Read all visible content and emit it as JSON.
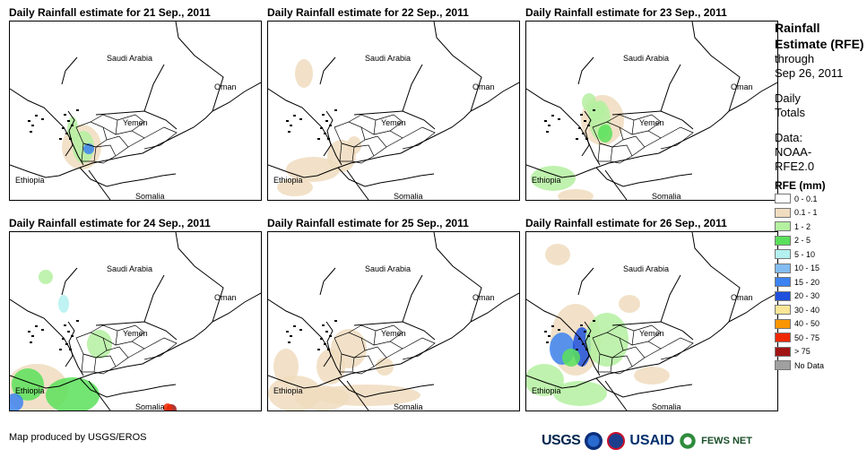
{
  "panels": [
    {
      "title": "Daily Rainfall estimate for 21 Sep., 2011"
    },
    {
      "title": "Daily Rainfall estimate for 22 Sep., 2011"
    },
    {
      "title": "Daily Rainfall estimate for 23 Sep., 2011"
    },
    {
      "title": "Daily Rainfall estimate for 24 Sep., 2011"
    },
    {
      "title": "Daily Rainfall estimate for 25 Sep., 2011"
    },
    {
      "title": "Daily Rainfall estimate for 26 Sep., 2011"
    }
  ],
  "map_labels": {
    "saudi_arabia": "Saudi Arabia",
    "oman": "Oman",
    "yemen": "Yemen",
    "ethiopia": "Ethiopia",
    "somalia": "Somalia"
  },
  "legend": {
    "title": "Rainfall Estimate (RFE)",
    "through": "through",
    "date": "Sep 26, 2011",
    "daily": "Daily",
    "totals": "Totals",
    "data_label": "Data:",
    "data_src1": "NOAA-",
    "data_src2": "RFE2.0",
    "unit": "RFE (mm)",
    "classes": [
      {
        "label": "0 - 0.1",
        "color": "#ffffff"
      },
      {
        "label": "0.1 - 1",
        "color": "#f0dcbe"
      },
      {
        "label": "1 - 2",
        "color": "#b4f0a0"
      },
      {
        "label": "2 - 5",
        "color": "#5ae05a"
      },
      {
        "label": "5 - 10",
        "color": "#b4f0f0"
      },
      {
        "label": "10 - 15",
        "color": "#82bcf0"
      },
      {
        "label": "15 - 20",
        "color": "#3c82f0"
      },
      {
        "label": "20 - 30",
        "color": "#1e50dc"
      },
      {
        "label": "30 - 40",
        "color": "#fae696"
      },
      {
        "label": "40 - 50",
        "color": "#fa9600"
      },
      {
        "label": "50 - 75",
        "color": "#f02800"
      },
      {
        "label": "> 75",
        "color": "#a01414"
      },
      {
        "label": "No Data",
        "color": "#a0a0a0"
      }
    ]
  },
  "credit": "Map produced by USGS/EROS",
  "logos": {
    "usgs": "USGS",
    "usaid": "USAID",
    "fews": "FEWS NET"
  }
}
